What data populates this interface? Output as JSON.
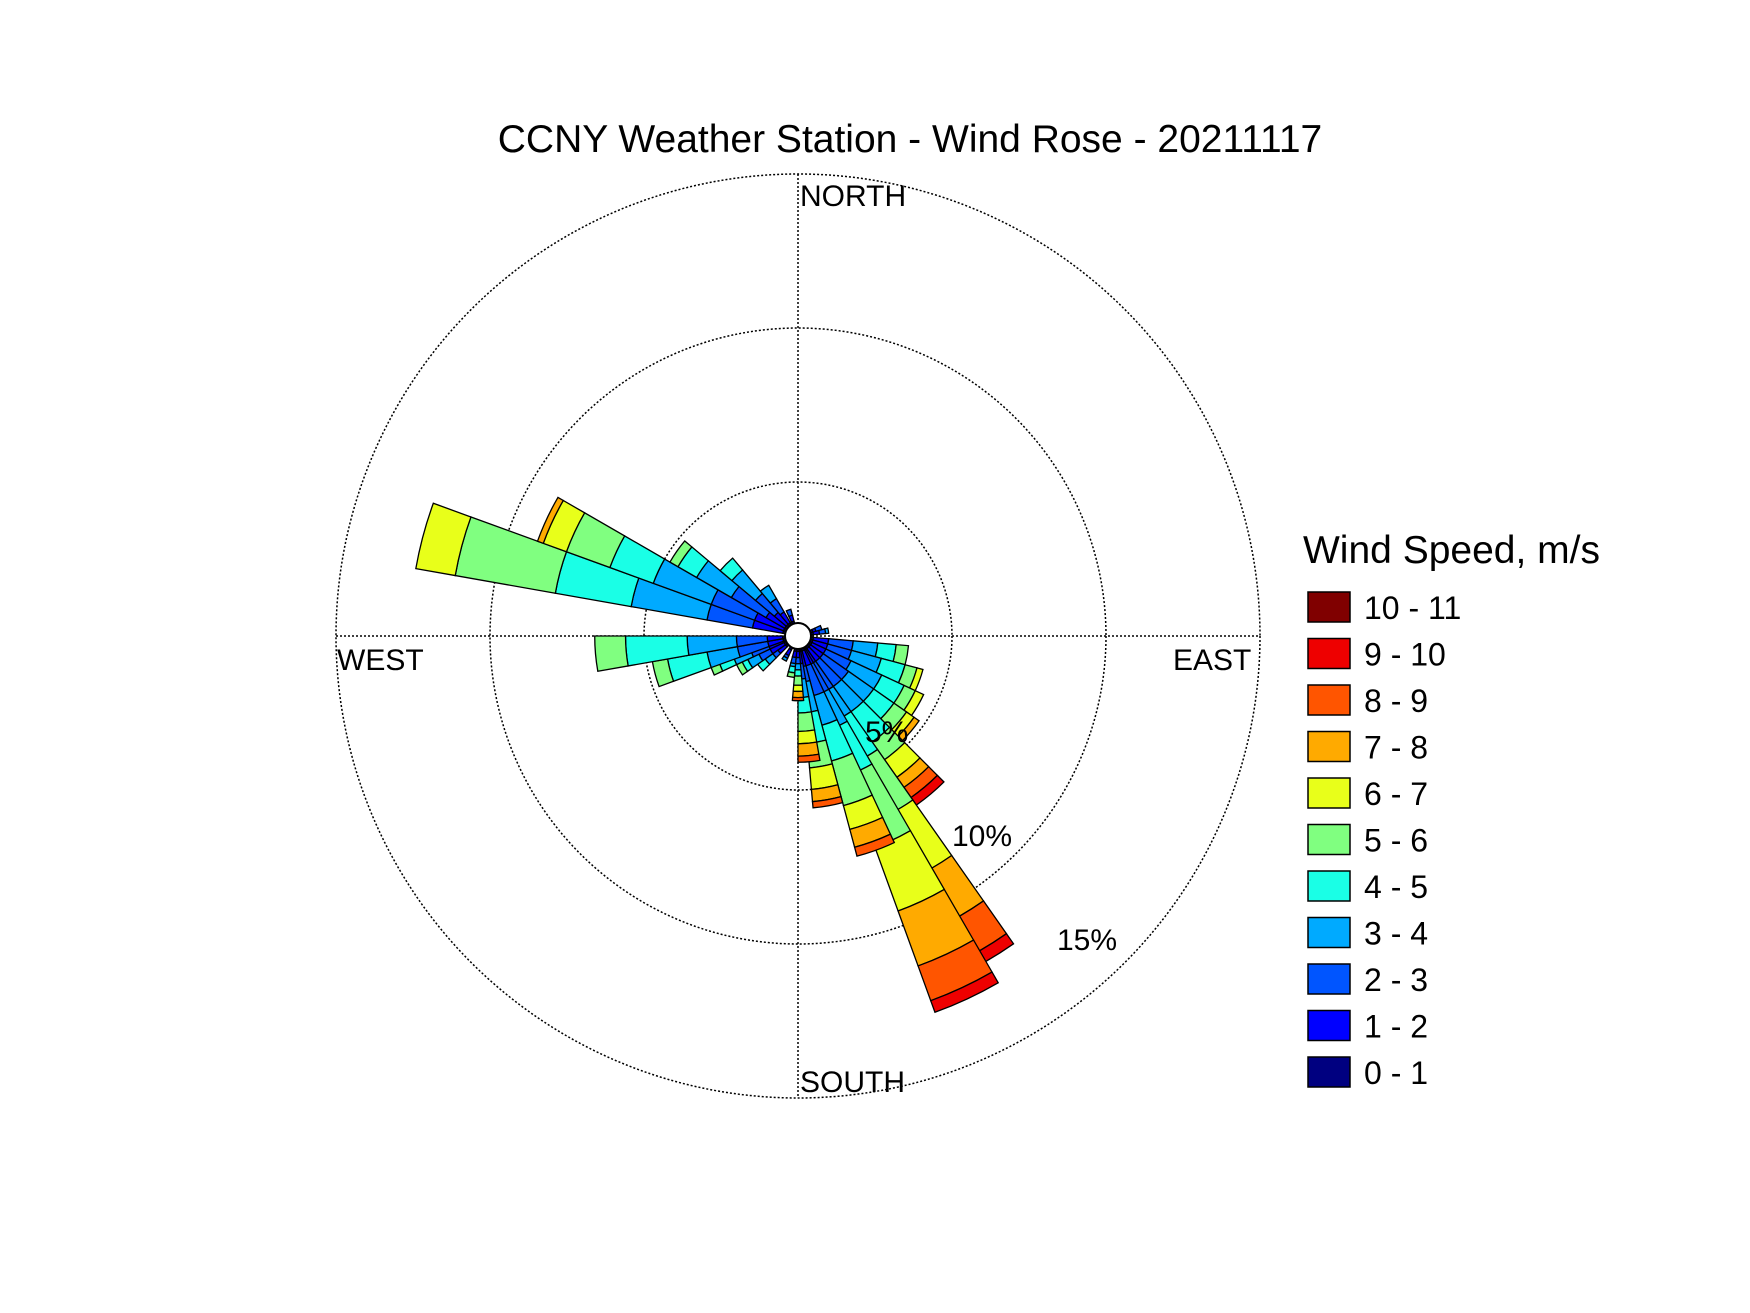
{
  "chart_data": {
    "type": "wind-rose",
    "title": "CCNY Weather Station - Wind Rose - 20211117",
    "directions": {
      "north": "NORTH",
      "east": "EAST",
      "south": "SOUTH",
      "west": "WEST"
    },
    "radial_axis": {
      "unit": "%",
      "max": 15,
      "ticks": [
        5,
        10,
        15
      ],
      "tick_labels": [
        "5%",
        "10%",
        "15%"
      ],
      "grid": true
    },
    "legend": {
      "title": "Wind Speed, m/s",
      "placement": "right",
      "bins": [
        {
          "label": "10 - 11",
          "color": "#800000"
        },
        {
          "label": "9 - 10",
          "color": "#ee0000"
        },
        {
          "label": "8 - 9",
          "color": "#ff5500"
        },
        {
          "label": "7 - 8",
          "color": "#ffaa00"
        },
        {
          "label": "6 - 7",
          "color": "#e8ff1a"
        },
        {
          "label": "5 - 6",
          "color": "#80ff80"
        },
        {
          "label": "4 - 5",
          "color": "#1affe6"
        },
        {
          "label": "3 - 4",
          "color": "#00aaff"
        },
        {
          "label": "2 - 3",
          "color": "#0055ff"
        },
        {
          "label": "1 - 2",
          "color": "#0000ff"
        },
        {
          "label": "0 - 1",
          "color": "#000080"
        }
      ]
    },
    "bin_order_from_center": [
      "0 - 1",
      "1 - 2",
      "2 - 3",
      "3 - 4",
      "4 - 5",
      "5 - 6",
      "6 - 7",
      "7 - 8",
      "8 - 9",
      "9 - 10",
      "10 - 11"
    ],
    "sector_width_deg": 10,
    "sectors": [
      {
        "direction_deg": 100,
        "cumulative_percent": [
          0.5,
          1.0,
          1.8,
          2.6,
          3.2,
          3.6
        ]
      },
      {
        "direction_deg": 110,
        "cumulative_percent": [
          0.5,
          1.0,
          1.8,
          2.8,
          3.6,
          4.0,
          4.2
        ]
      },
      {
        "direction_deg": 120,
        "cumulative_percent": [
          0.5,
          1.0,
          1.9,
          3.0,
          3.8,
          4.2,
          4.5
        ]
      },
      {
        "direction_deg": 130,
        "cumulative_percent": [
          0.5,
          1.0,
          2.0,
          3.0,
          3.8,
          4.3,
          4.6,
          4.8
        ]
      },
      {
        "direction_deg": 140,
        "cumulative_percent": [
          0.5,
          1.0,
          2.0,
          3.0,
          4.2,
          4.9,
          5.6,
          6.0,
          6.4,
          6.7
        ]
      },
      {
        "direction_deg": 150,
        "cumulative_percent": [
          0.5,
          1.0,
          2.0,
          3.0,
          4.5,
          6.5,
          8.7,
          10.5,
          11.8,
          12.2
        ]
      },
      {
        "direction_deg": 155,
        "cumulative_percent": [
          0.5,
          1.0,
          2.0,
          3.2,
          4.8,
          7.3,
          9.5,
          11.4,
          12.6,
          13.0
        ]
      },
      {
        "direction_deg": 160,
        "cumulative_percent": [
          0.5,
          1.0,
          2.0,
          3.0,
          4.2,
          5.7,
          6.5,
          7.1,
          7.4
        ]
      },
      {
        "direction_deg": 170,
        "cumulative_percent": [
          0.5,
          1.0,
          1.5,
          2.5,
          3.5,
          4.3,
          5.0,
          5.4,
          5.6
        ]
      },
      {
        "direction_deg": 175,
        "cumulative_percent": [
          0.5,
          0.9,
          1.4,
          2.0,
          2.5,
          3.1,
          3.5,
          3.9,
          4.1
        ]
      },
      {
        "direction_deg": 180,
        "cumulative_percent": [
          0.5,
          0.7,
          0.9,
          1.1,
          1.3,
          1.6,
          1.8,
          2.0,
          2.1
        ]
      },
      {
        "direction_deg": 190,
        "cumulative_percent": [
          0.5,
          0.7,
          0.9,
          1.0,
          1.2,
          1.35
        ]
      },
      {
        "direction_deg": 210,
        "cumulative_percent": [
          0.5,
          0.7,
          0.8,
          0.9
        ]
      },
      {
        "direction_deg": 230,
        "cumulative_percent": [
          0.5,
          0.8,
          1.0,
          1.3,
          1.6
        ]
      },
      {
        "direction_deg": 240,
        "cumulative_percent": [
          0.5,
          1.0,
          1.4,
          1.8,
          2.0,
          2.2
        ]
      },
      {
        "direction_deg": 250,
        "cumulative_percent": [
          0.5,
          1.0,
          1.6,
          2.2,
          2.7,
          3.0
        ]
      },
      {
        "direction_deg": 255,
        "cumulative_percent": [
          0.5,
          1.0,
          2.0,
          3.0,
          4.3,
          4.8
        ]
      },
      {
        "direction_deg": 265,
        "cumulative_percent": [
          0.5,
          1.0,
          2.0,
          3.6,
          5.6,
          6.6
        ]
      },
      {
        "direction_deg": 285,
        "cumulative_percent": [
          0.5,
          1.5,
          3.0,
          5.5,
          8.0,
          11.3,
          12.6
        ]
      },
      {
        "direction_deg": 295,
        "cumulative_percent": [
          0.5,
          1.5,
          3.0,
          5.0,
          6.5,
          8.0,
          8.8,
          9.0
        ]
      },
      {
        "direction_deg": 305,
        "cumulative_percent": [
          0.5,
          1.2,
          2.5,
          3.8,
          4.5,
          4.8
        ]
      },
      {
        "direction_deg": 315,
        "cumulative_percent": [
          0.5,
          1.0,
          1.8,
          2.8,
          3.3
        ]
      },
      {
        "direction_deg": 325,
        "cumulative_percent": [
          0.5,
          0.9,
          1.4,
          1.9
        ]
      },
      {
        "direction_deg": 340,
        "cumulative_percent": [
          0.5,
          0.7,
          0.9
        ]
      },
      {
        "direction_deg": 80,
        "cumulative_percent": [
          0.5,
          0.7,
          0.9,
          1.0
        ]
      },
      {
        "direction_deg": 70,
        "cumulative_percent": [
          0.5,
          0.6,
          0.8
        ]
      }
    ]
  }
}
